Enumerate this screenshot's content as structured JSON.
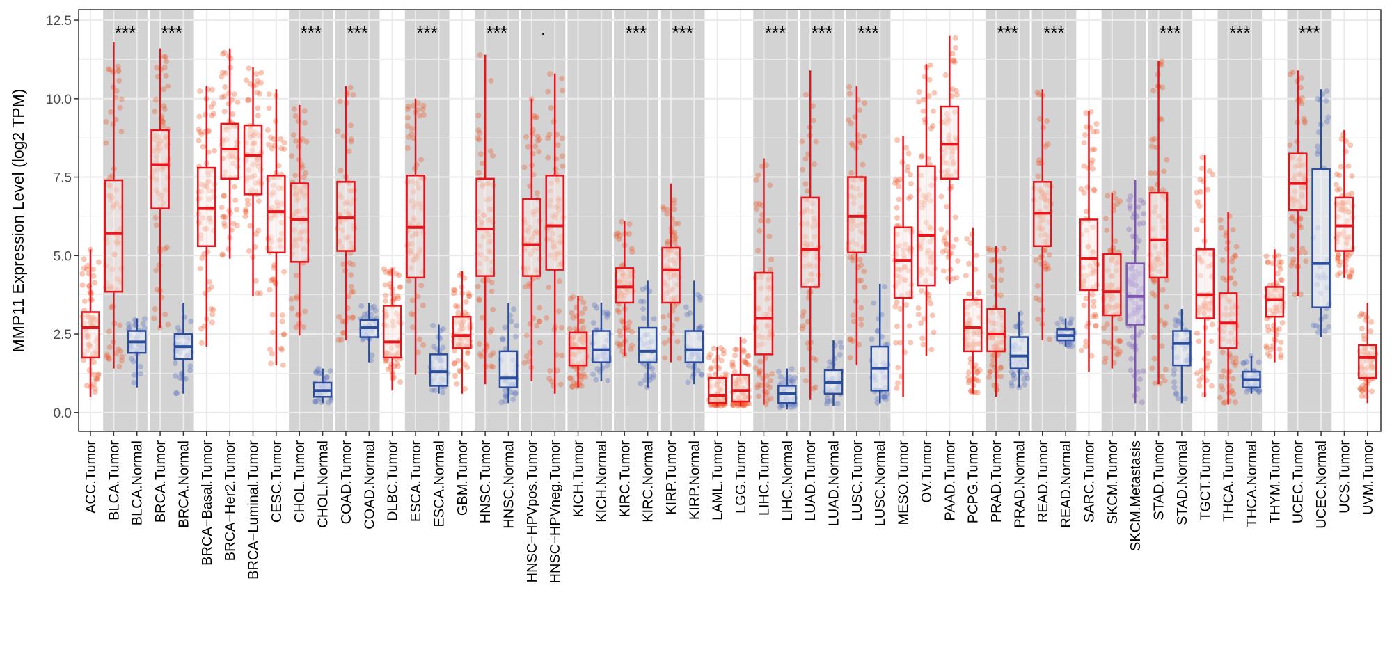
{
  "chart_data": {
    "type": "box",
    "title": "",
    "xlabel": "",
    "ylabel": "MMP11 Expression Level (log2 TPM)",
    "ylim": [
      -0.6,
      12.83
    ],
    "yticks": [
      "0.0",
      "2.5",
      "5.0",
      "7.5",
      "10.0",
      "12.5"
    ],
    "ytick_values": [
      0,
      2.5,
      5,
      7.5,
      10,
      12.5
    ],
    "grid": true,
    "legend": "none",
    "colors": {
      "Tumor": "#e8141c",
      "Normal": "#2a4d9e",
      "Metastasis": "#7e57b2",
      "pair_band": "#d3d3d3"
    },
    "stats_order": [
      "whisker_low",
      "q1",
      "median",
      "q3",
      "whisker_high"
    ],
    "groups": [
      {
        "label": "ACC.Tumor",
        "kind": "Tumor",
        "stats": [
          0.5,
          1.75,
          2.7,
          3.2,
          5.2
        ]
      },
      {
        "label": "BLCA.Tumor",
        "kind": "Tumor",
        "stats": [
          1.4,
          3.85,
          5.7,
          7.4,
          11.8
        ]
      },
      {
        "label": "BLCA.Normal",
        "kind": "Normal",
        "stats": [
          0.8,
          1.9,
          2.25,
          2.6,
          3.0
        ]
      },
      {
        "label": "BRCA.Tumor",
        "kind": "Tumor",
        "stats": [
          2.7,
          6.5,
          7.9,
          9.0,
          11.6
        ]
      },
      {
        "label": "BRCA.Normal",
        "kind": "Normal",
        "stats": [
          0.6,
          1.7,
          2.1,
          2.5,
          3.5
        ]
      },
      {
        "label": "BRCA−Basal.Tumor",
        "kind": "Tumor",
        "stats": [
          2.1,
          5.3,
          6.5,
          7.8,
          10.4
        ]
      },
      {
        "label": "BRCA−Her2.Tumor",
        "kind": "Tumor",
        "stats": [
          4.9,
          7.45,
          8.4,
          9.2,
          11.6
        ]
      },
      {
        "label": "BRCA−Luminal.Tumor",
        "kind": "Tumor",
        "stats": [
          3.7,
          6.95,
          8.2,
          9.15,
          11.0
        ]
      },
      {
        "label": "CESC.Tumor",
        "kind": "Tumor",
        "stats": [
          1.5,
          5.1,
          6.4,
          7.55,
          10.3
        ]
      },
      {
        "label": "CHOL.Tumor",
        "kind": "Tumor",
        "stats": [
          2.45,
          4.8,
          6.15,
          7.3,
          9.8
        ]
      },
      {
        "label": "CHOL.Normal",
        "kind": "Normal",
        "stats": [
          0.3,
          0.5,
          0.7,
          0.95,
          1.4
        ]
      },
      {
        "label": "COAD.Tumor",
        "kind": "Tumor",
        "stats": [
          2.3,
          5.15,
          6.2,
          7.35,
          10.4
        ]
      },
      {
        "label": "COAD.Normal",
        "kind": "Normal",
        "stats": [
          1.6,
          2.4,
          2.7,
          2.95,
          3.5
        ]
      },
      {
        "label": "DLBC.Tumor",
        "kind": "Tumor",
        "stats": [
          0.7,
          1.75,
          2.25,
          3.4,
          4.6
        ]
      },
      {
        "label": "ESCA.Tumor",
        "kind": "Tumor",
        "stats": [
          1.2,
          4.3,
          5.9,
          7.55,
          10.0
        ]
      },
      {
        "label": "ESCA.Normal",
        "kind": "Normal",
        "stats": [
          0.6,
          0.85,
          1.3,
          1.85,
          2.8
        ]
      },
      {
        "label": "GBM.Tumor",
        "kind": "Tumor",
        "stats": [
          0.6,
          2.05,
          2.45,
          3.05,
          4.5
        ]
      },
      {
        "label": "HNSC.Tumor",
        "kind": "Tumor",
        "stats": [
          0.9,
          4.35,
          5.85,
          7.45,
          11.4
        ]
      },
      {
        "label": "HNSC.Normal",
        "kind": "Normal",
        "stats": [
          0.3,
          0.8,
          1.1,
          1.95,
          3.5
        ]
      },
      {
        "label": "HNSC−HPVpos.Tumor",
        "kind": "Tumor",
        "stats": [
          1.0,
          4.35,
          5.35,
          6.8,
          10.0
        ]
      },
      {
        "label": "HNSC−HPVneg.Tumor",
        "kind": "Tumor",
        "stats": [
          0.6,
          4.55,
          5.95,
          7.55,
          10.8
        ]
      },
      {
        "label": "KICH.Tumor",
        "kind": "Tumor",
        "stats": [
          0.8,
          1.5,
          2.05,
          2.55,
          3.7
        ]
      },
      {
        "label": "KICH.Normal",
        "kind": "Normal",
        "stats": [
          1.0,
          1.6,
          2.0,
          2.6,
          3.5
        ]
      },
      {
        "label": "KIRC.Tumor",
        "kind": "Tumor",
        "stats": [
          1.8,
          3.5,
          4.0,
          4.6,
          6.1
        ]
      },
      {
        "label": "KIRC.Normal",
        "kind": "Normal",
        "stats": [
          0.8,
          1.6,
          1.95,
          2.7,
          4.2
        ]
      },
      {
        "label": "KIRP.Tumor",
        "kind": "Tumor",
        "stats": [
          1.6,
          3.5,
          4.55,
          5.25,
          7.3
        ]
      },
      {
        "label": "KIRP.Normal",
        "kind": "Normal",
        "stats": [
          0.9,
          1.6,
          2.0,
          2.6,
          4.2
        ]
      },
      {
        "label": "LAML.Tumor",
        "kind": "Tumor",
        "stats": [
          0.2,
          0.3,
          0.55,
          1.1,
          2.1
        ]
      },
      {
        "label": "LGG.Tumor",
        "kind": "Tumor",
        "stats": [
          0.2,
          0.35,
          0.7,
          1.2,
          2.4
        ]
      },
      {
        "label": "LIHC.Tumor",
        "kind": "Tumor",
        "stats": [
          0.25,
          1.85,
          3.0,
          4.45,
          8.1
        ]
      },
      {
        "label": "LIHC.Normal",
        "kind": "Normal",
        "stats": [
          0.1,
          0.3,
          0.6,
          0.85,
          1.4
        ]
      },
      {
        "label": "LUAD.Tumor",
        "kind": "Tumor",
        "stats": [
          0.4,
          4.0,
          5.2,
          6.85,
          10.9
        ]
      },
      {
        "label": "LUAD.Normal",
        "kind": "Normal",
        "stats": [
          0.2,
          0.6,
          0.95,
          1.35,
          2.3
        ]
      },
      {
        "label": "LUSC.Tumor",
        "kind": "Tumor",
        "stats": [
          1.5,
          5.1,
          6.25,
          7.5,
          10.4
        ]
      },
      {
        "label": "LUSC.Normal",
        "kind": "Normal",
        "stats": [
          0.3,
          0.7,
          1.4,
          2.1,
          4.1
        ]
      },
      {
        "label": "MESO.Tumor",
        "kind": "Tumor",
        "stats": [
          0.5,
          3.65,
          4.85,
          5.9,
          8.8
        ]
      },
      {
        "label": "OV.Tumor",
        "kind": "Tumor",
        "stats": [
          1.8,
          4.05,
          5.65,
          7.85,
          11.1
        ]
      },
      {
        "label": "PAAD.Tumor",
        "kind": "Tumor",
        "stats": [
          4.1,
          7.45,
          8.55,
          9.75,
          12.0
        ]
      },
      {
        "label": "PCPG.Tumor",
        "kind": "Tumor",
        "stats": [
          0.6,
          1.95,
          2.7,
          3.6,
          5.9
        ]
      },
      {
        "label": "PRAD.Tumor",
        "kind": "Tumor",
        "stats": [
          0.5,
          1.95,
          2.5,
          3.3,
          5.3
        ]
      },
      {
        "label": "PRAD.Normal",
        "kind": "Normal",
        "stats": [
          0.8,
          1.4,
          1.8,
          2.4,
          3.2
        ]
      },
      {
        "label": "READ.Tumor",
        "kind": "Tumor",
        "stats": [
          2.3,
          5.3,
          6.35,
          7.35,
          10.3
        ]
      },
      {
        "label": "READ.Normal",
        "kind": "Normal",
        "stats": [
          2.1,
          2.3,
          2.45,
          2.65,
          3.0
        ]
      },
      {
        "label": "SARC.Tumor",
        "kind": "Tumor",
        "stats": [
          1.3,
          3.9,
          4.9,
          6.15,
          9.6
        ]
      },
      {
        "label": "SKCM.Tumor",
        "kind": "Tumor",
        "stats": [
          1.4,
          3.1,
          3.85,
          5.05,
          7.0
        ]
      },
      {
        "label": "SKCM.Metastasis",
        "kind": "Metastasis",
        "stats": [
          0.3,
          2.8,
          3.7,
          4.75,
          7.4
        ]
      },
      {
        "label": "STAD.Tumor",
        "kind": "Tumor",
        "stats": [
          0.9,
          4.3,
          5.5,
          7.0,
          11.2
        ]
      },
      {
        "label": "STAD.Normal",
        "kind": "Normal",
        "stats": [
          0.3,
          1.5,
          2.2,
          2.6,
          3.3
        ]
      },
      {
        "label": "TGCT.Tumor",
        "kind": "Tumor",
        "stats": [
          0.5,
          3.0,
          3.75,
          5.2,
          8.2
        ]
      },
      {
        "label": "THCA.Tumor",
        "kind": "Tumor",
        "stats": [
          0.25,
          2.05,
          2.85,
          3.8,
          6.4
        ]
      },
      {
        "label": "THCA.Normal",
        "kind": "Normal",
        "stats": [
          0.6,
          0.8,
          1.05,
          1.3,
          1.8
        ]
      },
      {
        "label": "THYM.Tumor",
        "kind": "Tumor",
        "stats": [
          1.6,
          3.05,
          3.6,
          4.0,
          5.2
        ]
      },
      {
        "label": "UCEC.Tumor",
        "kind": "Tumor",
        "stats": [
          3.7,
          6.45,
          7.3,
          8.25,
          10.9
        ]
      },
      {
        "label": "UCEC.Normal",
        "kind": "Normal",
        "stats": [
          2.4,
          3.35,
          4.75,
          7.75,
          10.3
        ]
      },
      {
        "label": "UCS.Tumor",
        "kind": "Tumor",
        "stats": [
          4.3,
          5.15,
          5.95,
          6.85,
          9.0
        ]
      },
      {
        "label": "UVM.Tumor",
        "kind": "Tumor",
        "stats": [
          0.3,
          1.1,
          1.75,
          2.15,
          3.5
        ]
      }
    ],
    "comparisons": [
      {
        "pair": [
          "BLCA.Tumor",
          "BLCA.Normal"
        ],
        "significance": "***"
      },
      {
        "pair": [
          "BRCA.Tumor",
          "BRCA.Normal"
        ],
        "significance": "***"
      },
      {
        "pair": [
          "CHOL.Tumor",
          "CHOL.Normal"
        ],
        "significance": "***"
      },
      {
        "pair": [
          "COAD.Tumor",
          "COAD.Normal"
        ],
        "significance": "***"
      },
      {
        "pair": [
          "ESCA.Tumor",
          "ESCA.Normal"
        ],
        "significance": "***"
      },
      {
        "pair": [
          "HNSC.Tumor",
          "HNSC.Normal"
        ],
        "significance": "***"
      },
      {
        "pair": [
          "HNSC−HPVpos.Tumor",
          "HNSC−HPVneg.Tumor"
        ],
        "significance": "."
      },
      {
        "pair": [
          "KICH.Tumor",
          "KICH.Normal"
        ],
        "significance": ""
      },
      {
        "pair": [
          "KIRC.Tumor",
          "KIRC.Normal"
        ],
        "significance": "***"
      },
      {
        "pair": [
          "KIRP.Tumor",
          "KIRP.Normal"
        ],
        "significance": "***"
      },
      {
        "pair": [
          "LIHC.Tumor",
          "LIHC.Normal"
        ],
        "significance": "***"
      },
      {
        "pair": [
          "LUAD.Tumor",
          "LUAD.Normal"
        ],
        "significance": "***"
      },
      {
        "pair": [
          "LUSC.Tumor",
          "LUSC.Normal"
        ],
        "significance": "***"
      },
      {
        "pair": [
          "PRAD.Tumor",
          "PRAD.Normal"
        ],
        "significance": "***"
      },
      {
        "pair": [
          "READ.Tumor",
          "READ.Normal"
        ],
        "significance": "***"
      },
      {
        "pair": [
          "SKCM.Tumor",
          "SKCM.Metastasis"
        ],
        "significance": ""
      },
      {
        "pair": [
          "STAD.Tumor",
          "STAD.Normal"
        ],
        "significance": "***"
      },
      {
        "pair": [
          "THCA.Tumor",
          "THCA.Normal"
        ],
        "significance": "***"
      },
      {
        "pair": [
          "UCEC.Tumor",
          "UCEC.Normal"
        ],
        "significance": "***"
      }
    ]
  }
}
